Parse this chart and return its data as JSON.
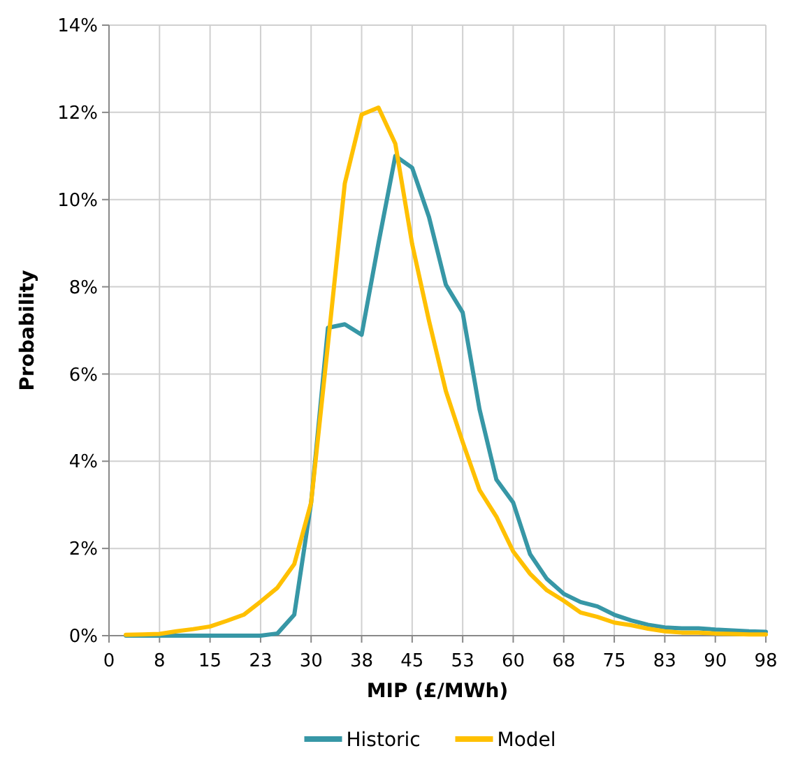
{
  "chart_data": {
    "type": "line",
    "xlabel": "MIP (£/MWh)",
    "ylabel": "Probability",
    "x": [
      2.5,
      5,
      7.5,
      10,
      12.5,
      15,
      17.5,
      20,
      22.5,
      25,
      27.5,
      30,
      32.5,
      35,
      37.5,
      40,
      42.5,
      45,
      47.5,
      50,
      52.5,
      55,
      57.5,
      60,
      62.5,
      65,
      67.5,
      70,
      72.5,
      75,
      77.5,
      80,
      82.5,
      85,
      87.5,
      90,
      92.5,
      95,
      97.5
    ],
    "series": [
      {
        "name": "Historic",
        "color": "#3797a6",
        "values": [
          0,
          0,
          0,
          0,
          0,
          0,
          0,
          0,
          0,
          0.05,
          0.48,
          3.05,
          7.06,
          7.14,
          6.9,
          9.0,
          11.0,
          10.73,
          9.6,
          8.05,
          7.41,
          5.19,
          3.58,
          3.05,
          1.87,
          1.3,
          0.96,
          0.77,
          0.67,
          0.48,
          0.35,
          0.25,
          0.19,
          0.17,
          0.17,
          0.14,
          0.12,
          0.1,
          0.09
        ]
      },
      {
        "name": "Model",
        "color": "#ffc000",
        "values": [
          0.02,
          0.03,
          0.04,
          0.1,
          0.15,
          0.21,
          0.34,
          0.48,
          0.78,
          1.1,
          1.64,
          3.05,
          6.68,
          10.37,
          11.95,
          12.11,
          11.28,
          8.98,
          7.22,
          5.61,
          4.44,
          3.34,
          2.73,
          1.93,
          1.42,
          1.04,
          0.8,
          0.53,
          0.43,
          0.3,
          0.24,
          0.16,
          0.1,
          0.07,
          0.07,
          0.05,
          0.04,
          0.03,
          0.03
        ]
      }
    ],
    "xlim": [
      0,
      97.5
    ],
    "xticks": [
      0,
      {
        "value": 7.5,
        "label": "8"
      },
      15,
      {
        "value": 22.5,
        "label": "23"
      },
      30,
      {
        "value": 37.5,
        "label": "38"
      },
      45,
      {
        "value": 52.5,
        "label": "53"
      },
      60,
      {
        "value": 67.5,
        "label": "68"
      },
      75,
      {
        "value": 82.5,
        "label": "83"
      },
      90,
      {
        "value": 97.5,
        "label": "98"
      }
    ],
    "ylim": [
      0,
      14
    ],
    "yticks": [
      {
        "value": 0,
        "label": "0%"
      },
      {
        "value": 2,
        "label": "2%"
      },
      {
        "value": 4,
        "label": "4%"
      },
      {
        "value": 6,
        "label": "6%"
      },
      {
        "value": 8,
        "label": "8%"
      },
      {
        "value": 10,
        "label": "10%"
      },
      {
        "value": 12,
        "label": "12%"
      },
      {
        "value": 14,
        "label": "14%"
      }
    ],
    "grid": true,
    "legend": "bottom",
    "marker": "none",
    "line_style": "solid"
  }
}
